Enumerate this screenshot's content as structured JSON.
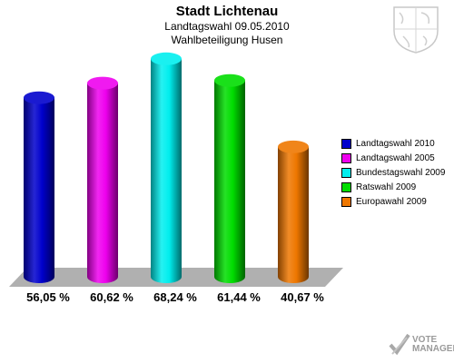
{
  "header": {
    "title": "Stadt Lichtenau",
    "subtitle": "Landtagswahl 09.05.2010",
    "subtitle2": "Wahlbeteiligung Husen"
  },
  "chart_data": {
    "type": "bar",
    "title": "Stadt Lichtenau",
    "categories": [
      "Landtagswahl 2010",
      "Landtagswahl 2005",
      "Bundestagswahl 2009",
      "Ratswahl 2009",
      "Europawahl 2009"
    ],
    "values": [
      56.05,
      60.62,
      68.24,
      61.44,
      40.67
    ],
    "value_labels": [
      "56,05 %",
      "60,62 %",
      "68,24 %",
      "61,44 %",
      "40,67 %"
    ],
    "colors": [
      "#0000cc",
      "#ee00ee",
      "#00eeee",
      "#00dd00",
      "#ee7700"
    ],
    "ylim": [
      0,
      70
    ],
    "legend_position": "right",
    "grid": false
  },
  "legend": {
    "items": [
      {
        "label": "Landtagswahl 2010",
        "color": "#0000cc"
      },
      {
        "label": "Landtagswahl 2005",
        "color": "#ee00ee"
      },
      {
        "label": "Bundestagswahl 2009",
        "color": "#00eeee"
      },
      {
        "label": "Ratswahl 2009",
        "color": "#00dd00"
      },
      {
        "label": "Europawahl 2009",
        "color": "#ee7700"
      }
    ]
  },
  "branding": {
    "logo_line1": "VOTE",
    "logo_line2": "MANAGER",
    "crest_icon": "coat-of-arms-icon",
    "logo_icon": "vote-check-icon"
  }
}
